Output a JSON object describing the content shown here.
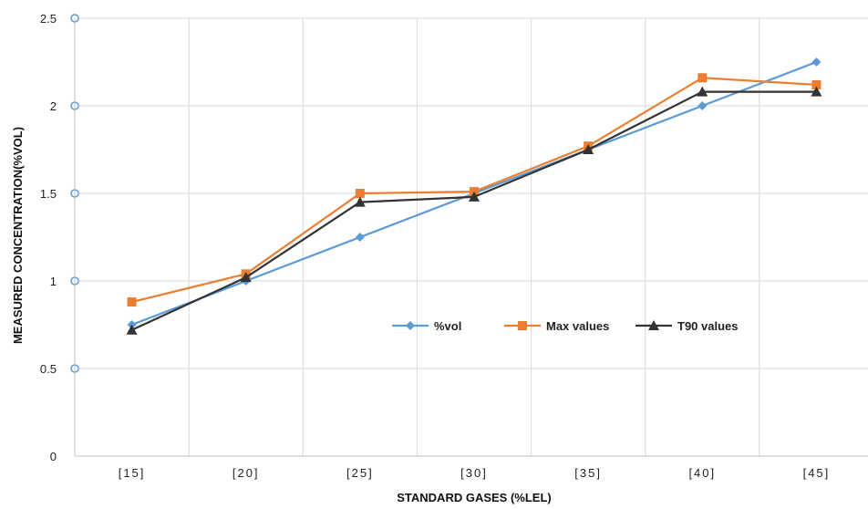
{
  "chart_data": {
    "type": "line",
    "categories": [
      "[15]",
      "[20]",
      "[25]",
      "[30]",
      "[35]",
      "[40]",
      "[45]"
    ],
    "series": [
      {
        "name": "%vol",
        "color": "#5b9bd5",
        "marker": "diamond",
        "values": [
          0.75,
          1.0,
          1.25,
          1.5,
          1.75,
          2.0,
          2.25
        ]
      },
      {
        "name": "Max values",
        "color": "#ed7d31",
        "marker": "square",
        "values": [
          0.88,
          1.04,
          1.5,
          1.51,
          1.77,
          2.16,
          2.12
        ]
      },
      {
        "name": "T90 values",
        "color": "#333333",
        "marker": "triangle",
        "values": [
          0.72,
          1.02,
          1.45,
          1.48,
          1.75,
          2.08,
          2.08
        ]
      }
    ],
    "title": "",
    "xlabel": "STANDARD GASES (%LEL)",
    "ylabel": "MEASURED CONCENTRATION(%VOL)",
    "ylim": [
      0,
      2.5
    ],
    "yticks": [
      "0",
      "0.5",
      "1",
      "1.5",
      "2",
      "2.5"
    ],
    "grid": true,
    "legend_position": "center-right"
  }
}
